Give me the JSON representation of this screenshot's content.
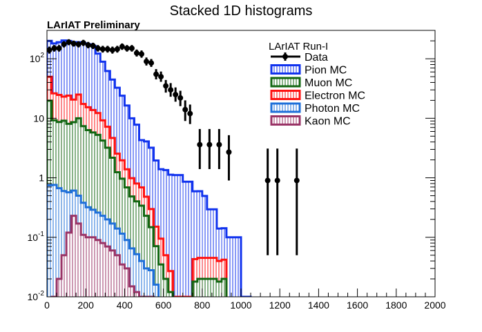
{
  "chart_data": {
    "type": "bar",
    "title": "Stacked 1D histograms",
    "subtitle": "LArIAT Preliminary",
    "xlabel": "",
    "ylabel": "",
    "xlim": [
      0,
      2000
    ],
    "ylim": [
      0.01,
      300
    ],
    "yscale": "log",
    "bin_width": 25,
    "legend": {
      "title": "LArIAT Run-I",
      "placement": "top-right",
      "entries": [
        "Data",
        "Pion MC",
        "Muon MC",
        "Electron MC",
        "Photon MC",
        "Kaon MC"
      ]
    },
    "x_ticks": [
      "0",
      "200",
      "400",
      "600",
      "800",
      "1000",
      "1200",
      "1400",
      "1600",
      "1800",
      "2000"
    ],
    "y_ticks": [
      {
        "base": "10",
        "exp": "-2",
        "value": 0.01
      },
      {
        "base": "10",
        "exp": "-1",
        "value": 0.1
      },
      {
        "base": "1",
        "exp": "",
        "value": 1
      },
      {
        "base": "10",
        "exp": "",
        "value": 10
      },
      {
        "base": "10",
        "exp": "2",
        "value": 100
      }
    ],
    "stack_series": [
      {
        "name": "Kaon MC",
        "color": "#993366",
        "start": 25,
        "values": [
          0.01,
          0.02,
          0.05,
          0.12,
          0.23,
          0.17,
          0.11,
          0.1,
          0.1,
          0.09,
          0.08,
          0.07,
          0.06,
          0.05,
          0.035,
          0.03,
          0.015,
          0.012,
          0.01,
          0.01,
          0.01
        ]
      },
      {
        "name": "Photon MC",
        "color": "#1E6FD9",
        "start": 0,
        "values": [
          0.75,
          0.75,
          0.65,
          0.55,
          0.45,
          0.38,
          0.33,
          0.27,
          0.22,
          0.19,
          0.17,
          0.15,
          0.13,
          0.11,
          0.09,
          0.08,
          0.06,
          0.05,
          0.04,
          0.03,
          0.02,
          0.018,
          0.016
        ]
      },
      {
        "name": "Muon MC",
        "color": "#116611",
        "start": 0,
        "values": [
          19,
          8.5,
          8,
          8.5,
          7.5,
          8,
          9.5,
          7,
          6,
          5.5,
          5,
          4,
          3,
          2,
          1.1,
          0.85,
          0.6,
          0.42,
          0.35,
          0.3,
          0.2,
          0.12,
          0.055,
          0.035,
          0.02,
          0.012,
          0,
          0,
          0,
          0,
          0.018,
          0.02,
          0.02,
          0.02,
          0.02,
          0.018,
          0.02
        ]
      },
      {
        "name": "Electron MC",
        "color": "#FF1111",
        "start": 0,
        "values": [
          30,
          17,
          16,
          14,
          16,
          12,
          15,
          10,
          9,
          8,
          7,
          5,
          4,
          2.5,
          1.3,
          1,
          0.7,
          0.5,
          0.4,
          0.35,
          0.25,
          0.15,
          0.08,
          0.06,
          0.03,
          0.015,
          0.01,
          0.01,
          0.01,
          0.01,
          0.025,
          0.025,
          0.025,
          0.025,
          0.025,
          0.022,
          0.022
        ]
      },
      {
        "name": "Pion MC",
        "color": "#1133EE",
        "start": 0,
        "values": [
          150,
          155,
          165,
          180,
          175,
          170,
          165,
          165,
          160,
          150,
          110,
          80,
          55,
          40,
          30,
          22,
          15,
          9,
          7,
          3.6,
          3.6,
          2.9,
          1.8,
          1.3,
          1.3,
          1.1,
          1.1,
          1.1,
          0.85,
          0.85,
          0.55,
          0.55,
          0.45,
          0.25,
          0.25,
          0.1,
          0.1,
          0.1,
          0.1,
          0.1,
          0.01,
          0.01
        ]
      }
    ],
    "data_points": {
      "name": "Data",
      "x": [
        12.5,
        37.5,
        62.5,
        87.5,
        112.5,
        137.5,
        162.5,
        187.5,
        212.5,
        237.5,
        262.5,
        287.5,
        312.5,
        337.5,
        362.5,
        387.5,
        412.5,
        437.5,
        462.5,
        487.5,
        512.5,
        537.5,
        562.5,
        587.5,
        612.5,
        637.5,
        662.5,
        687.5,
        712.5,
        737.5,
        787.5,
        837.5,
        887.5,
        937.5,
        1137.5,
        1187.5,
        1287.5
      ],
      "y": [
        140,
        150,
        150,
        175,
        190,
        180,
        175,
        185,
        170,
        165,
        150,
        145,
        145,
        140,
        145,
        160,
        150,
        150,
        125,
        120,
        90,
        85,
        55,
        50,
        35,
        30,
        25,
        22,
        14,
        12,
        3.6,
        3.6,
        3.6,
        2.7,
        0.9,
        0.9,
        0.9
      ],
      "yerr_up": [
        20,
        20,
        20,
        22,
        23,
        22,
        22,
        23,
        22,
        21,
        20,
        20,
        20,
        20,
        20,
        21,
        20,
        20,
        18,
        18,
        15,
        14,
        12,
        11,
        9,
        9,
        8,
        7,
        6,
        5,
        3,
        3,
        3,
        2.5,
        2.2,
        2.2,
        2.2
      ],
      "yerr_down": [
        18,
        18,
        18,
        20,
        21,
        20,
        20,
        21,
        20,
        19,
        18,
        18,
        18,
        18,
        18,
        19,
        18,
        18,
        16,
        16,
        13,
        12,
        10,
        9,
        8,
        7,
        6,
        6,
        5,
        4,
        2.2,
        2.2,
        2.2,
        1.8,
        0.85,
        0.85,
        0.85
      ]
    }
  }
}
